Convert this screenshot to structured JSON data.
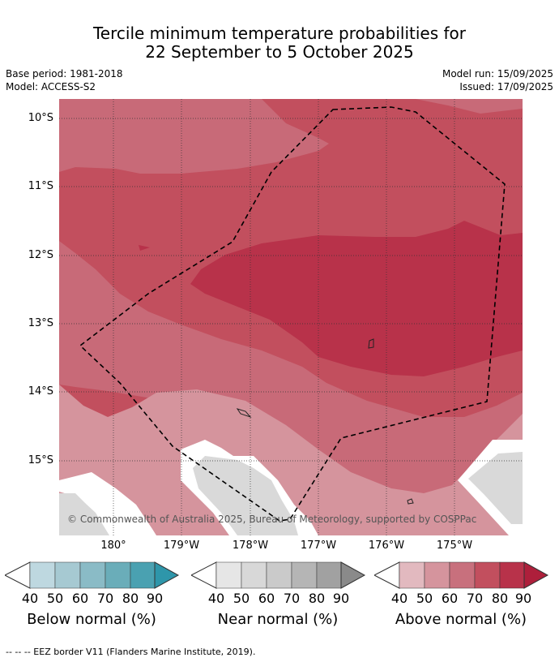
{
  "title": {
    "line1": "Tercile minimum temperature probabilities for",
    "line2": "22 September to 5 October 2025"
  },
  "meta": {
    "base_period": "Base period: 1981-2018",
    "model": "Model: ACCESS-S2",
    "model_run": "Model run: 15/09/2025",
    "issued": "Issued: 17/09/2025"
  },
  "map": {
    "lat_labels": [
      "10°S",
      "11°S",
      "12°S",
      "13°S",
      "14°S",
      "15°S"
    ],
    "lon_labels": [
      "180°",
      "179°W",
      "178°W",
      "177°W",
      "176°W",
      "175°W"
    ],
    "copyright": "© Commonwealth of Australia 2025, Bureau of Meteorology, supported by COSPPac",
    "colors": {
      "above_50": "#d5949d",
      "above_60": "#c86a78",
      "above_70": "#c24f5e",
      "above_80": "#b8324a",
      "near_40": "#d9d9d9",
      "white_band": "#ffffff",
      "gridline": "#333333",
      "eez_border": "#000000"
    }
  },
  "colorbars": [
    {
      "title": "Below normal (%)",
      "ticks": [
        "40",
        "50",
        "60",
        "70",
        "80",
        "90"
      ],
      "colors": [
        "#ffffff",
        "#bed8e0",
        "#a6c9d2",
        "#8abbc6",
        "#6aadb9",
        "#4aa1b1",
        "#2e96aa"
      ]
    },
    {
      "title": "Near normal (%)",
      "ticks": [
        "40",
        "50",
        "60",
        "70",
        "80",
        "90"
      ],
      "colors": [
        "#ffffff",
        "#e6e6e6",
        "#d8d8d8",
        "#cacaca",
        "#b5b5b5",
        "#a1a1a1",
        "#8a8a8a"
      ]
    },
    {
      "title": "Above normal (%)",
      "ticks": [
        "40",
        "50",
        "60",
        "70",
        "80",
        "90"
      ],
      "colors": [
        "#ffffff",
        "#e2b9bf",
        "#d5949d",
        "#c8707d",
        "#c24f5e",
        "#b8324a",
        "#ae1f3b"
      ]
    }
  ],
  "footer": "--  --  -- EEZ border V11 (Flanders Marine Institute, 2019)."
}
